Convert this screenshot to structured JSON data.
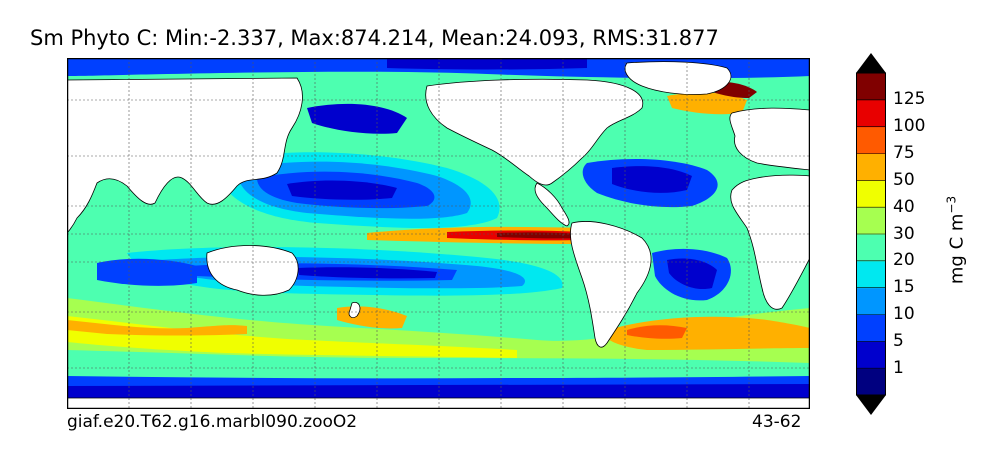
{
  "map": {
    "title": "Sm Phyto C: Min:-2.337, Max:874.214, Mean:24.093, RMS:31.877",
    "case_name": "giaf.e20.T62.g16.marbl090.zooO2",
    "years": "43-62",
    "units_main": "mg C m",
    "units_sup": "−3",
    "colorbar": {
      "ticks": [
        "1",
        "5",
        "10",
        "15",
        "20",
        "30",
        "40",
        "50",
        "75",
        "100",
        "125"
      ],
      "colors": [
        "#000080",
        "#0000cd",
        "#0040ff",
        "#0096ff",
        "#00e8f0",
        "#4dffb0",
        "#a6ff50",
        "#f0ff00",
        "#ffb000",
        "#ff5a00",
        "#e80000",
        "#800000"
      ]
    },
    "colors": {
      "land": "#ffffff",
      "coast": "#000000",
      "grid": "#555555"
    }
  }
}
